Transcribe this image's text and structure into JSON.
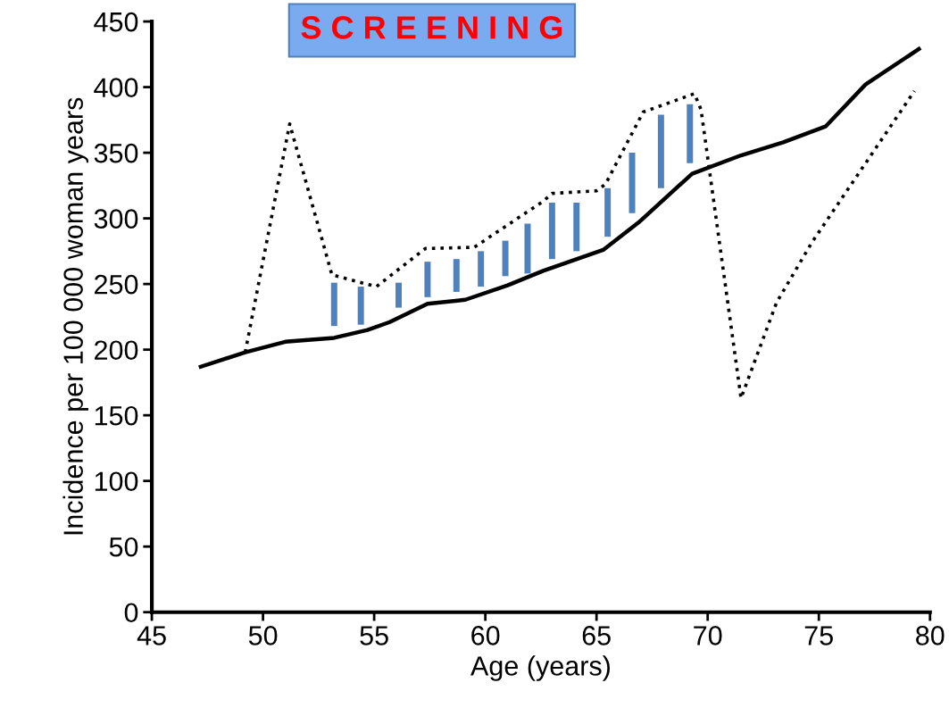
{
  "chart_data": {
    "type": "line",
    "xlabel": "Age (years)",
    "ylabel": "Incidence per 100 000 woman years",
    "annotations": [
      "S C R E E N I N G"
    ],
    "xlim": [
      45,
      80
    ],
    "xticks": [
      45,
      50,
      55,
      60,
      65,
      70,
      75,
      80
    ],
    "ylim": [
      0,
      450
    ],
    "yticks": [
      0,
      50,
      100,
      150,
      200,
      250,
      300,
      350,
      400,
      450
    ],
    "grid": false,
    "legend": false,
    "marker": "none",
    "series": [
      {
        "color": "#000000",
        "line_style": "solid",
        "x": [
          47.2,
          49.2,
          51.0,
          53.2,
          54.7,
          55.7,
          57.4,
          59.1,
          61.0,
          62.6,
          65.3,
          66.9,
          69.3,
          71.5,
          73.4,
          75.3,
          77.1,
          79.5
        ],
        "values": [
          187,
          198,
          206,
          209,
          215,
          221,
          235,
          238,
          249,
          260,
          276,
          297,
          334,
          348,
          358,
          370,
          402,
          429
        ]
      },
      {
        "color": "#000000",
        "line_style": "dotted",
        "x": [
          49.2,
          51.2,
          53.1,
          55.1,
          57.3,
          59.5,
          62.6,
          63.0,
          65.0,
          65.4,
          67.1,
          69.4,
          69.7,
          71.5,
          73.1,
          74.7,
          79.3
        ],
        "values": [
          198,
          372,
          257,
          248,
          277,
          278,
          313,
          319,
          321,
          326,
          381,
          395,
          383,
          163,
          236,
          282,
          397
        ]
      },
      {
        "type": "bar",
        "color": "#4f81bd",
        "x": [
          53.2,
          54.4,
          56.1,
          57.4,
          58.7,
          59.8,
          60.9,
          61.9,
          63.0,
          64.1,
          65.5,
          66.6,
          67.9,
          69.2
        ],
        "base": [
          218,
          219,
          232,
          240,
          244,
          248,
          256,
          258,
          269,
          275,
          286,
          304,
          323,
          342
        ],
        "values": [
          33,
          29,
          19,
          27,
          25,
          27,
          27,
          38,
          43,
          37,
          37,
          46,
          56,
          45
        ]
      }
    ]
  }
}
